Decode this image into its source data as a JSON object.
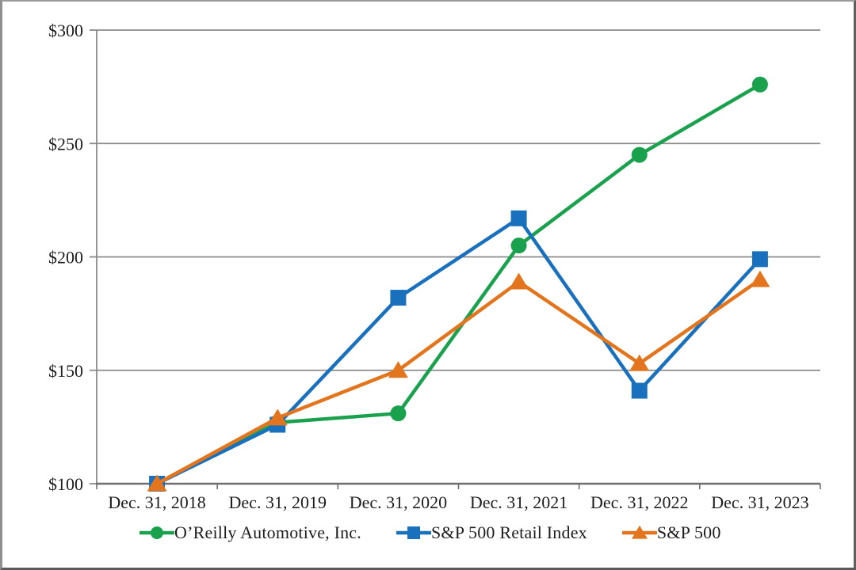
{
  "chart_data": {
    "type": "line",
    "categories": [
      "Dec. 31, 2018",
      "Dec. 31, 2019",
      "Dec. 31, 2020",
      "Dec. 31, 2021",
      "Dec. 31, 2022",
      "Dec. 31, 2023"
    ],
    "series": [
      {
        "name": "O’Reilly Automotive, Inc.",
        "marker": "circle",
        "color": "#1aa14d",
        "values": [
          100,
          127,
          131,
          205,
          245,
          276
        ]
      },
      {
        "name": "S&P 500 Retail Index",
        "marker": "square",
        "color": "#1971be",
        "values": [
          100,
          126,
          182,
          217,
          141,
          199
        ]
      },
      {
        "name": "S&P 500",
        "marker": "triangle",
        "color": "#e2751d",
        "values": [
          100,
          129,
          150,
          189,
          153,
          190
        ]
      }
    ],
    "ylim": [
      100,
      300
    ],
    "yticks": [
      {
        "value": 100,
        "label": "$100"
      },
      {
        "value": 150,
        "label": "$150"
      },
      {
        "value": 200,
        "label": "$200"
      },
      {
        "value": 250,
        "label": "$250"
      },
      {
        "value": 300,
        "label": "$300"
      }
    ],
    "grid": "horizontal",
    "legend_position": "bottom",
    "gridline_color": "#8a8a8a",
    "axis_color": "#6e6e6e",
    "text_color": "#1d1d1d"
  }
}
